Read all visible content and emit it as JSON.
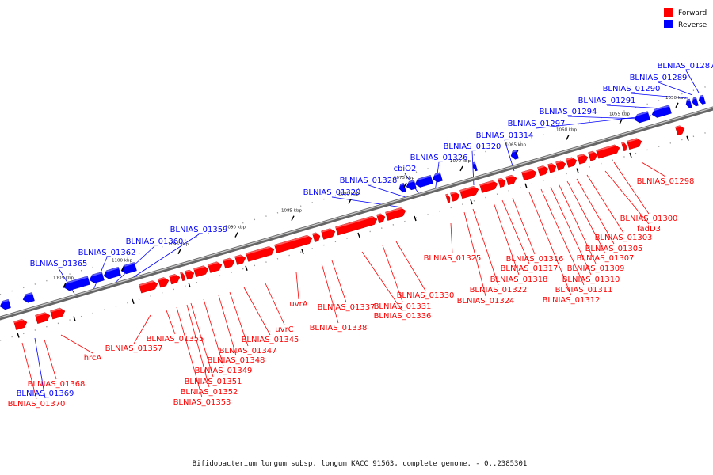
{
  "caption": "Bifidobacterium longum subsp. longum KACC 91563, complete genome. - 0..2385301",
  "legend": [
    {
      "label": "Forward",
      "color": "#ff0000"
    },
    {
      "label": "Reverse",
      "color": "#0000ff"
    }
  ],
  "colors": {
    "forward": "#ff0000",
    "reverse": "#0000ff",
    "axis": "#808080"
  },
  "ticks": [
    {
      "label": "1050 kbp"
    },
    {
      "label": "1055 kbp"
    },
    {
      "label": "1060 kbp"
    },
    {
      "label": "1065 kbp"
    },
    {
      "label": "1070 kbp"
    },
    {
      "label": "1075 kbp"
    },
    {
      "label": "1080 kbp"
    },
    {
      "label": "1085 kbp"
    },
    {
      "label": "1090 kbp"
    },
    {
      "label": "1095 kbp"
    },
    {
      "label": "1100 kbp"
    },
    {
      "label": "1105 kbp"
    }
  ],
  "reverse_labels": [
    "BLNIAS_01287",
    "BLNIAS_01289",
    "BLNIAS_01290",
    "BLNIAS_01291",
    "BLNIAS_01294",
    "BLNIAS_01297",
    "BLNIAS_01314",
    "BLNIAS_01320",
    "BLNIAS_01326",
    "cbiO2",
    "BLNIAS_01328",
    "BLNIAS_01329",
    "BLNIAS_01359",
    "BLNIAS_01360",
    "BLNIAS_01362",
    "BLNIAS_01365",
    "BLNIAS_01369"
  ],
  "forward_labels": [
    "BLNIAS_01298",
    "BLNIAS_01300",
    "fadD3",
    "BLNIAS_01303",
    "BLNIAS_01305",
    "BLNIAS_01307",
    "BLNIAS_01309",
    "BLNIAS_01310",
    "BLNIAS_01311",
    "BLNIAS_01312",
    "BLNIAS_01316",
    "BLNIAS_01317",
    "BLNIAS_01318",
    "BLNIAS_01322",
    "BLNIAS_01324",
    "BLNIAS_01325",
    "BLNIAS_01330",
    "BLNIAS_01331",
    "BLNIAS_01336",
    "BLNIAS_01337",
    "BLNIAS_01338",
    "uvrA",
    "uvrC",
    "BLNIAS_01345",
    "BLNIAS_01347",
    "BLNIAS_01348",
    "BLNIAS_01349",
    "BLNIAS_01351",
    "BLNIAS_01352",
    "BLNIAS_01353",
    "BLNIAS_01355",
    "BLNIAS_01357",
    "hrcA",
    "BLNIAS_01368",
    "BLNIAS_01370"
  ]
}
